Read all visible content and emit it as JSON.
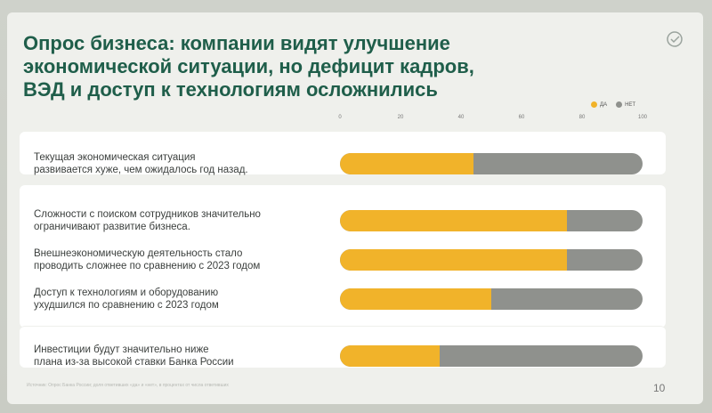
{
  "slide": {
    "title_lines": [
      "Опрос бизнеса: компании видят улучшение",
      "экономической ситуации, но дефицит кадров,",
      "ВЭД и доступ к технологиям осложнились"
    ],
    "page_number": "10",
    "footnote": "Источник: Опрос Банка России; доля ответивших «да» и «нет», в процентах от числа ответивших"
  },
  "chart_data": {
    "type": "bar",
    "orientation": "horizontal",
    "stacked": true,
    "xlim": [
      0,
      100
    ],
    "xticks": [
      "0",
      "20",
      "40",
      "60",
      "80",
      "100"
    ],
    "legend": [
      "ДА",
      "НЕТ"
    ],
    "legend_position": "top-right",
    "colors": {
      "yes": "#f1b32a",
      "no": "#8f918d",
      "title": "#1f5e4a"
    },
    "categories": [
      [
        "Текущая экономическая ситуация",
        "развивается хуже, чем ожидалось год назад."
      ],
      [
        "Сложности с поиском сотрудников значительно",
        "ограничивают развитие бизнеса."
      ],
      [
        "Внешнеэкономическую деятельность стало",
        "проводить сложнее по сравнению с 2023 годом"
      ],
      [
        "Доступ к технологиям и оборудованию",
        "ухудшился по сравнению с 2023 годом"
      ],
      [
        "Инвестиции будут значительно ниже",
        "плана из-за высокой ставки Банка России"
      ]
    ],
    "series": [
      {
        "name": "ДА",
        "values": [
          44,
          75,
          75,
          50,
          33
        ]
      },
      {
        "name": "НЕТ",
        "values": [
          56,
          25,
          25,
          50,
          67
        ]
      }
    ]
  }
}
